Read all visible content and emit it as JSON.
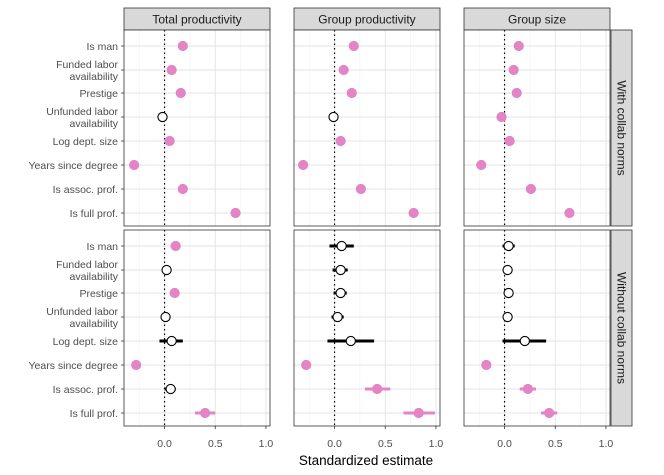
{
  "chart_data": {
    "type": "scatter",
    "title": "",
    "xlabel": "Standardized estimate",
    "ylabel": "",
    "xlim": [
      -0.4,
      1.04
    ],
    "xticks": [
      0.0,
      0.5,
      1.0
    ],
    "xtick_labels": [
      "0.0",
      "0.5",
      "1.0"
    ],
    "reference_line": 0,
    "grid": true,
    "columns": [
      "Total productivity",
      "Group productivity",
      "Group size"
    ],
    "rows": [
      "With collab norms",
      "Without collab norms"
    ],
    "categories": [
      [
        "Is man"
      ],
      [
        "Funded labor",
        "availability"
      ],
      [
        "Prestige"
      ],
      [
        "Unfunded labor",
        "availability"
      ],
      [
        "Log dept. size"
      ],
      [
        "Years since degree"
      ],
      [
        "Is assoc. prof."
      ],
      [
        "Is full prof."
      ]
    ],
    "significant_color": "#e384c4",
    "nonsignificant_color": "#ffffff",
    "panels": [
      {
        "row": 0,
        "col": 0,
        "points": [
          {
            "est": 0.18,
            "lo": 0.15,
            "hi": 0.21,
            "sig": true
          },
          {
            "est": 0.07,
            "lo": 0.04,
            "hi": 0.1,
            "sig": true
          },
          {
            "est": 0.16,
            "lo": 0.13,
            "hi": 0.19,
            "sig": true
          },
          {
            "est": -0.02,
            "lo": -0.04,
            "hi": 0.0,
            "sig": false
          },
          {
            "est": 0.05,
            "lo": 0.02,
            "hi": 0.08,
            "sig": true
          },
          {
            "est": -0.3,
            "lo": -0.33,
            "hi": -0.27,
            "sig": true
          },
          {
            "est": 0.18,
            "lo": 0.15,
            "hi": 0.21,
            "sig": true
          },
          {
            "est": 0.7,
            "lo": 0.67,
            "hi": 0.73,
            "sig": true
          }
        ]
      },
      {
        "row": 0,
        "col": 1,
        "points": [
          {
            "est": 0.19,
            "lo": 0.16,
            "hi": 0.22,
            "sig": true
          },
          {
            "est": 0.09,
            "lo": 0.06,
            "hi": 0.12,
            "sig": true
          },
          {
            "est": 0.17,
            "lo": 0.14,
            "hi": 0.2,
            "sig": true
          },
          {
            "est": -0.01,
            "lo": -0.03,
            "hi": 0.01,
            "sig": false
          },
          {
            "est": 0.06,
            "lo": 0.03,
            "hi": 0.09,
            "sig": true
          },
          {
            "est": -0.31,
            "lo": -0.34,
            "hi": -0.28,
            "sig": true
          },
          {
            "est": 0.26,
            "lo": 0.23,
            "hi": 0.29,
            "sig": true
          },
          {
            "est": 0.78,
            "lo": 0.75,
            "hi": 0.81,
            "sig": true
          }
        ]
      },
      {
        "row": 0,
        "col": 2,
        "points": [
          {
            "est": 0.14,
            "lo": 0.11,
            "hi": 0.17,
            "sig": true
          },
          {
            "est": 0.09,
            "lo": 0.06,
            "hi": 0.12,
            "sig": true
          },
          {
            "est": 0.12,
            "lo": 0.09,
            "hi": 0.15,
            "sig": true
          },
          {
            "est": -0.03,
            "lo": -0.06,
            "hi": 0.0,
            "sig": true
          },
          {
            "est": 0.05,
            "lo": 0.02,
            "hi": 0.08,
            "sig": true
          },
          {
            "est": -0.23,
            "lo": -0.26,
            "hi": -0.2,
            "sig": true
          },
          {
            "est": 0.26,
            "lo": 0.23,
            "hi": 0.29,
            "sig": true
          },
          {
            "est": 0.64,
            "lo": 0.61,
            "hi": 0.67,
            "sig": true
          }
        ]
      },
      {
        "row": 1,
        "col": 0,
        "points": [
          {
            "est": 0.11,
            "lo": 0.06,
            "hi": 0.14,
            "sig": true
          },
          {
            "est": 0.02,
            "lo": -0.01,
            "hi": 0.05,
            "sig": false
          },
          {
            "est": 0.1,
            "lo": 0.07,
            "hi": 0.13,
            "sig": true
          },
          {
            "est": 0.01,
            "lo": -0.02,
            "hi": 0.04,
            "sig": false
          },
          {
            "est": 0.07,
            "lo": -0.05,
            "hi": 0.18,
            "sig": false
          },
          {
            "est": -0.28,
            "lo": -0.31,
            "hi": -0.25,
            "sig": true
          },
          {
            "est": 0.06,
            "lo": 0.0,
            "hi": 0.11,
            "sig": false
          },
          {
            "est": 0.4,
            "lo": 0.3,
            "hi": 0.5,
            "sig": true
          }
        ]
      },
      {
        "row": 1,
        "col": 1,
        "points": [
          {
            "est": 0.07,
            "lo": -0.05,
            "hi": 0.19,
            "sig": false
          },
          {
            "est": 0.06,
            "lo": -0.02,
            "hi": 0.13,
            "sig": false
          },
          {
            "est": 0.06,
            "lo": -0.01,
            "hi": 0.12,
            "sig": false
          },
          {
            "est": 0.03,
            "lo": -0.03,
            "hi": 0.09,
            "sig": false
          },
          {
            "est": 0.16,
            "lo": -0.07,
            "hi": 0.39,
            "sig": false
          },
          {
            "est": -0.28,
            "lo": -0.32,
            "hi": -0.24,
            "sig": true
          },
          {
            "est": 0.42,
            "lo": 0.3,
            "hi": 0.55,
            "sig": true
          },
          {
            "est": 0.83,
            "lo": 0.68,
            "hi": 0.99,
            "sig": true
          }
        ]
      },
      {
        "row": 1,
        "col": 2,
        "points": [
          {
            "est": 0.04,
            "lo": -0.02,
            "hi": 0.1,
            "sig": false
          },
          {
            "est": 0.03,
            "lo": 0.0,
            "hi": 0.06,
            "sig": false
          },
          {
            "est": 0.04,
            "lo": 0.01,
            "hi": 0.07,
            "sig": false
          },
          {
            "est": 0.03,
            "lo": 0.0,
            "hi": 0.06,
            "sig": false
          },
          {
            "est": 0.2,
            "lo": -0.02,
            "hi": 0.41,
            "sig": false
          },
          {
            "est": -0.18,
            "lo": -0.21,
            "hi": -0.15,
            "sig": true
          },
          {
            "est": 0.23,
            "lo": 0.15,
            "hi": 0.31,
            "sig": true
          },
          {
            "est": 0.44,
            "lo": 0.36,
            "hi": 0.52,
            "sig": true
          }
        ]
      }
    ]
  }
}
